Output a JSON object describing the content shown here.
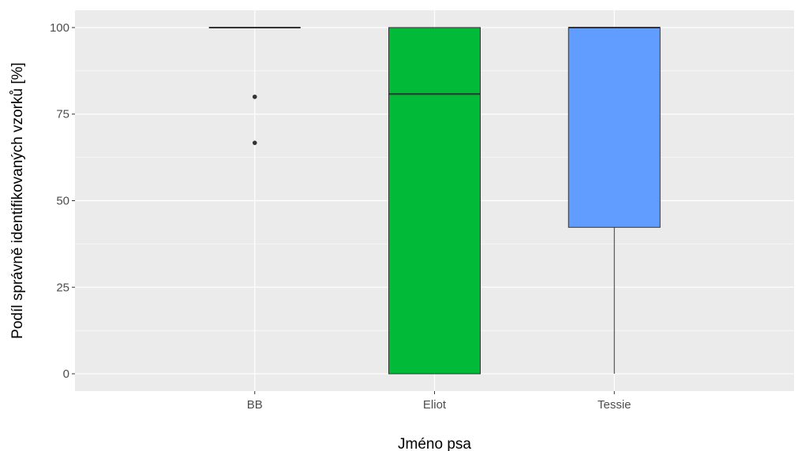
{
  "chart_data": {
    "type": "boxplot",
    "title": "",
    "xlabel": "Jméno psa",
    "ylabel": "Podíl správně identifikovaných vzorků [%]",
    "ylim": [
      -5,
      105
    ],
    "y_ticks": [
      0,
      25,
      50,
      75,
      100
    ],
    "categories": [
      "BB",
      "Eliot",
      "Tessie"
    ],
    "boxes": [
      {
        "category": "BB",
        "min": 100,
        "q1": 100,
        "median": 100,
        "q3": 100,
        "max": 100,
        "outliers": [
          80,
          66.7
        ],
        "fill": "#F8766D"
      },
      {
        "category": "Eliot",
        "min": 0,
        "q1": 0,
        "median": 80.8,
        "q3": 100,
        "max": 100,
        "outliers": [],
        "fill": "#00BA38"
      },
      {
        "category": "Tessie",
        "min": 0,
        "q1": 42.3,
        "median": 100,
        "q3": 100,
        "max": 100,
        "outliers": [],
        "fill": "#619CFF"
      }
    ],
    "grid": true,
    "legend": "none",
    "panel_background": "#EBEBEB",
    "grid_color": "#FFFFFF"
  }
}
